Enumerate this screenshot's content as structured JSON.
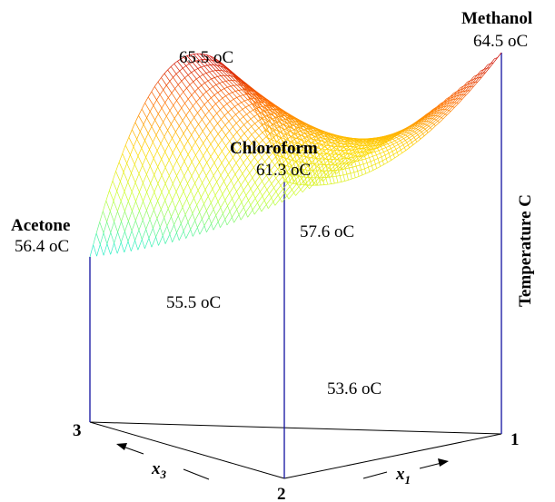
{
  "chart_data": {
    "type": "surface3d",
    "title": "",
    "zlabel": "Temperature C",
    "components": [
      {
        "name": "Acetone",
        "temperature": "56.4 oC",
        "corner": "3"
      },
      {
        "name": "Chloroform",
        "temperature": "61.3 oC",
        "corner": "2"
      },
      {
        "name": "Methanol",
        "temperature": "64.5 oC",
        "corner": "1"
      }
    ],
    "annotations": [
      {
        "text": "65.5 oC",
        "kind": "binary maximum azeotrope (acetone–chloroform)"
      },
      {
        "text": "55.5 oC",
        "kind": "binary minimum azeotrope (acetone–methanol)"
      },
      {
        "text": "57.6 oC",
        "kind": "binary azeotrope (chloroform–methanol)"
      },
      {
        "text": "53.6 oC",
        "kind": "minimum on surface"
      }
    ],
    "axes": {
      "x1_label": "x",
      "x1_sub": "1",
      "x3_label": "x",
      "x3_sub": "3"
    },
    "vertex_labels": [
      "1",
      "2",
      "3"
    ],
    "colormap": [
      "#0000c8",
      "#0050ff",
      "#00c8ff",
      "#30f0c0",
      "#c8ff30",
      "#ffd800",
      "#ff7000",
      "#c80000"
    ]
  }
}
